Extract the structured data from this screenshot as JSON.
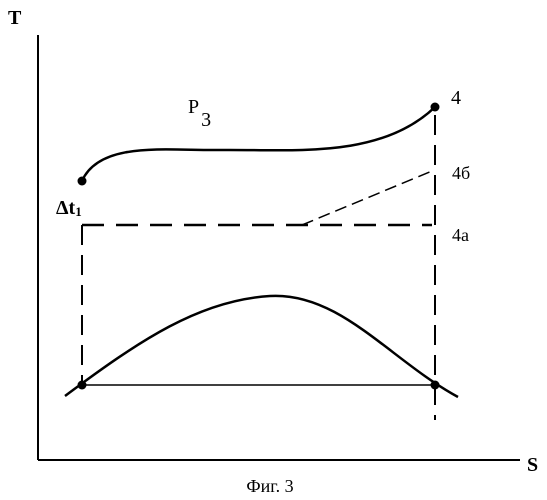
{
  "axes": {
    "y_label": "T",
    "x_label": "S"
  },
  "curve_labels": {
    "pressure": "P",
    "pressure_subscript": "3",
    "point_4": "4",
    "point_4b": "4б",
    "point_4a": "4а",
    "delta_t": "Δt",
    "delta_t_subscript": "1"
  },
  "caption": "Фиг. 3",
  "colors": {
    "ink": "#000000",
    "background": "#ffffff"
  }
}
